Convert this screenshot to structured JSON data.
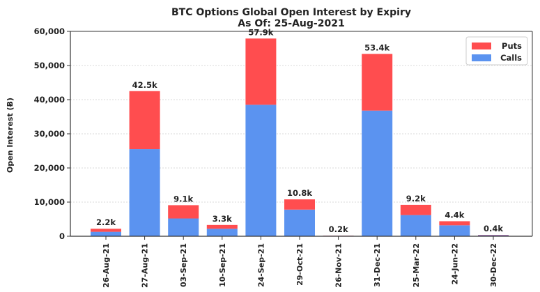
{
  "chart_data": {
    "type": "bar",
    "stacked": true,
    "title": "BTC Options Global Open Interest by Expiry",
    "subtitle": "As Of: 25-Aug-2021",
    "xlabel": "",
    "ylabel": "Open Interest (Ƀ)",
    "ylim": [
      0,
      60000
    ],
    "yticks": [
      0,
      10000,
      20000,
      30000,
      40000,
      50000,
      60000
    ],
    "ytick_labels": [
      "0",
      "10,000",
      "20,000",
      "30,000",
      "40,000",
      "50,000",
      "60,000"
    ],
    "grid": "y",
    "legend_position": "top-right",
    "categories": [
      "26-Aug-21",
      "27-Aug-21",
      "03-Sep-21",
      "10-Sep-21",
      "24-Sep-21",
      "29-Oct-21",
      "26-Nov-21",
      "31-Dec-21",
      "25-Mar-22",
      "24-Jun-22",
      "30-Dec-22"
    ],
    "series": [
      {
        "name": "Calls",
        "color": "#5b93f0",
        "values": [
          1300,
          25500,
          5200,
          2200,
          38500,
          7800,
          150,
          36800,
          6200,
          3200,
          300
        ]
      },
      {
        "name": "Puts",
        "color": "#ff4d4f",
        "values": [
          900,
          17000,
          3900,
          1100,
          19400,
          3000,
          50,
          16600,
          3000,
          1200,
          100
        ]
      }
    ],
    "legend_order": [
      "Puts",
      "Calls"
    ],
    "data_labels": [
      "2.2k",
      "42.5k",
      "9.1k",
      "3.3k",
      "57.9k",
      "10.8k",
      "0.2k",
      "53.4k",
      "9.2k",
      "4.4k",
      "0.4k"
    ]
  }
}
